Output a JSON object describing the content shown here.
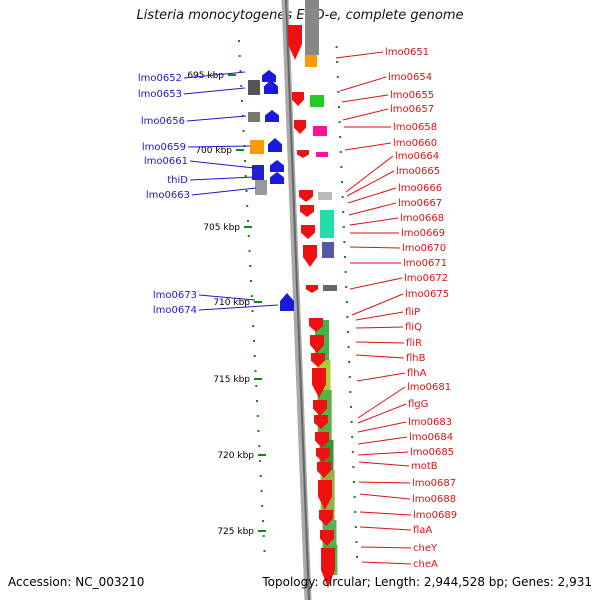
{
  "header": {
    "title": "Listeria monocytogenes EGD-e, complete genome"
  },
  "footer": {
    "accession": "Accession: NC_003210",
    "summary": "Topology: circular; Length: 2,944,528 bp; Genes: 2,931"
  },
  "colors": {
    "forward_label": "#1a1acc",
    "reverse_label": "#dd1111",
    "backbone": "#888888",
    "tick": "#118811"
  },
  "kbp_labels": [
    "695 kbp",
    "700 kbp",
    "705 kbp",
    "710 kbp",
    "715 kbp",
    "720 kbp",
    "725 kbp"
  ],
  "left_genes": [
    "lmo0652",
    "lmo0653",
    "lmo0656",
    "lmo0659",
    "lmo0661",
    "thiD",
    "lmo0663",
    "lmo0673",
    "lmo0674"
  ],
  "right_genes": [
    "lmo0651",
    "lmo0654",
    "lmo0655",
    "lmo0657",
    "lmo0658",
    "lmo0660",
    "lmo0664",
    "lmo0665",
    "lmo0666",
    "lmo0667",
    "lmo0668",
    "lmo0669",
    "lmo0670",
    "lmo0671",
    "lmo0672",
    "lmo0675",
    "fliP",
    "fliQ",
    "fliR",
    "flhB",
    "flhA",
    "lmo0681",
    "flgG",
    "lmo0683",
    "lmo0684",
    "lmo0685",
    "motB",
    "lmo0687",
    "lmo0688",
    "lmo0689",
    "flaA",
    "cheY",
    "cheA"
  ]
}
